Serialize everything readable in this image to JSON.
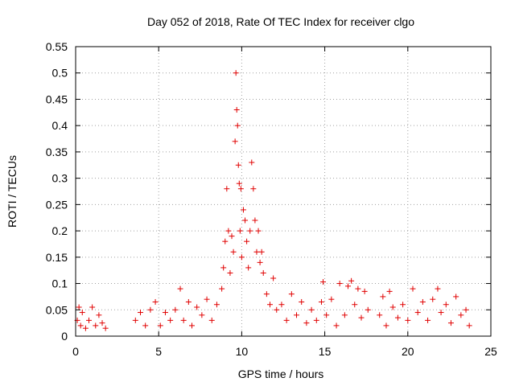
{
  "chart_data": {
    "type": "scatter",
    "title": "Day 052 of 2018, Rate Of TEC Index for receiver clgo",
    "xlabel": "GPS time / hours",
    "ylabel": "ROTI / TECUs",
    "xlim": [
      0,
      25
    ],
    "ylim": [
      0,
      0.55
    ],
    "xticks": [
      "0",
      "5",
      "10",
      "15",
      "20",
      "25"
    ],
    "yticks": [
      "0",
      "0.05",
      "0.1",
      "0.15",
      "0.2",
      "0.25",
      "0.3",
      "0.35",
      "0.4",
      "0.45",
      "0.5",
      "0.55"
    ],
    "grid": true,
    "marker": "+",
    "color": "#e00000",
    "series": [
      {
        "points": [
          [
            0.1,
            0.03
          ],
          [
            0.2,
            0.055
          ],
          [
            0.3,
            0.02
          ],
          [
            0.4,
            0.045
          ],
          [
            0.6,
            0.015
          ],
          [
            0.8,
            0.03
          ],
          [
            1.0,
            0.055
          ],
          [
            1.2,
            0.02
          ],
          [
            1.4,
            0.04
          ],
          [
            1.6,
            0.025
          ],
          [
            1.8,
            0.015
          ],
          [
            3.6,
            0.03
          ],
          [
            3.9,
            0.045
          ],
          [
            4.2,
            0.02
          ],
          [
            4.5,
            0.05
          ],
          [
            4.8,
            0.065
          ],
          [
            5.1,
            0.02
          ],
          [
            5.4,
            0.045
          ],
          [
            5.7,
            0.03
          ],
          [
            6.0,
            0.05
          ],
          [
            6.3,
            0.09
          ],
          [
            6.5,
            0.03
          ],
          [
            6.8,
            0.065
          ],
          [
            7.0,
            0.02
          ],
          [
            7.3,
            0.055
          ],
          [
            7.6,
            0.04
          ],
          [
            7.9,
            0.07
          ],
          [
            8.2,
            0.03
          ],
          [
            8.5,
            0.06
          ],
          [
            8.8,
            0.09
          ],
          [
            8.9,
            0.13
          ],
          [
            9.0,
            0.18
          ],
          [
            9.1,
            0.28
          ],
          [
            9.2,
            0.2
          ],
          [
            9.3,
            0.12
          ],
          [
            9.4,
            0.19
          ],
          [
            9.5,
            0.16
          ],
          [
            9.6,
            0.37
          ],
          [
            9.65,
            0.5
          ],
          [
            9.7,
            0.43
          ],
          [
            9.75,
            0.4
          ],
          [
            9.8,
            0.325
          ],
          [
            9.85,
            0.29
          ],
          [
            9.9,
            0.2
          ],
          [
            9.95,
            0.28
          ],
          [
            10.0,
            0.15
          ],
          [
            10.1,
            0.24
          ],
          [
            10.2,
            0.22
          ],
          [
            10.3,
            0.18
          ],
          [
            10.4,
            0.13
          ],
          [
            10.5,
            0.2
          ],
          [
            10.6,
            0.33
          ],
          [
            10.7,
            0.28
          ],
          [
            10.8,
            0.22
          ],
          [
            10.9,
            0.16
          ],
          [
            11.0,
            0.2
          ],
          [
            11.1,
            0.14
          ],
          [
            11.2,
            0.16
          ],
          [
            11.3,
            0.12
          ],
          [
            11.5,
            0.08
          ],
          [
            11.7,
            0.06
          ],
          [
            11.9,
            0.11
          ],
          [
            12.1,
            0.05
          ],
          [
            12.4,
            0.06
          ],
          [
            12.7,
            0.03
          ],
          [
            13.0,
            0.08
          ],
          [
            13.3,
            0.04
          ],
          [
            13.6,
            0.065
          ],
          [
            13.9,
            0.025
          ],
          [
            14.2,
            0.05
          ],
          [
            14.5,
            0.03
          ],
          [
            14.8,
            0.065
          ],
          [
            14.9,
            0.103
          ],
          [
            15.1,
            0.04
          ],
          [
            15.4,
            0.07
          ],
          [
            15.7,
            0.02
          ],
          [
            15.9,
            0.1
          ],
          [
            16.2,
            0.04
          ],
          [
            16.4,
            0.095
          ],
          [
            16.6,
            0.105
          ],
          [
            16.8,
            0.06
          ],
          [
            17.0,
            0.09
          ],
          [
            17.2,
            0.035
          ],
          [
            17.4,
            0.085
          ],
          [
            17.6,
            0.05
          ],
          [
            18.3,
            0.04
          ],
          [
            18.5,
            0.075
          ],
          [
            18.7,
            0.02
          ],
          [
            18.9,
            0.085
          ],
          [
            19.1,
            0.055
          ],
          [
            19.4,
            0.035
          ],
          [
            19.7,
            0.06
          ],
          [
            20.0,
            0.03
          ],
          [
            20.3,
            0.09
          ],
          [
            20.6,
            0.045
          ],
          [
            20.9,
            0.065
          ],
          [
            21.2,
            0.03
          ],
          [
            21.5,
            0.07
          ],
          [
            21.8,
            0.09
          ],
          [
            22.0,
            0.045
          ],
          [
            22.3,
            0.06
          ],
          [
            22.6,
            0.025
          ],
          [
            22.9,
            0.075
          ],
          [
            23.2,
            0.04
          ],
          [
            23.5,
            0.05
          ],
          [
            23.7,
            0.02
          ]
        ]
      }
    ]
  }
}
